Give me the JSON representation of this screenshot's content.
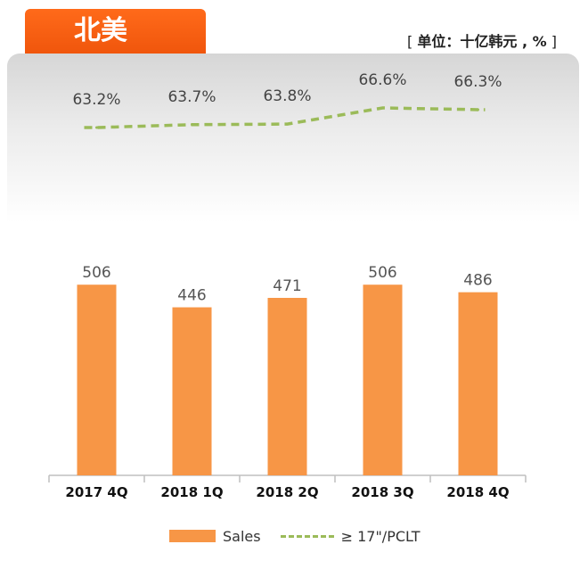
{
  "header": {
    "region": "北美",
    "unit": "单位：十亿韩元 , %",
    "unit_open": "[",
    "unit_close": "]"
  },
  "chart_data": {
    "type": "bar",
    "categories": [
      "2017 4Q",
      "2018 1Q",
      "2018 2Q",
      "2018 3Q",
      "2018 4Q"
    ],
    "series": [
      {
        "name": "Sales",
        "kind": "bar",
        "values": [
          506,
          446,
          471,
          506,
          486
        ],
        "color": "#f79646"
      },
      {
        "name": "≥ 17\"/PCLT",
        "kind": "line",
        "values": [
          63.2,
          63.7,
          63.8,
          66.6,
          66.3
        ],
        "color": "#9bbb59"
      }
    ],
    "bar_labels": [
      "506",
      "446",
      "471",
      "506",
      "486"
    ],
    "line_labels": [
      "63.2%",
      "63.7%",
      "63.8%",
      "66.6%",
      "66.3%"
    ],
    "legend": {
      "position": "bottom",
      "items": [
        "Sales",
        "≥ 17\"/PCLT"
      ]
    }
  }
}
